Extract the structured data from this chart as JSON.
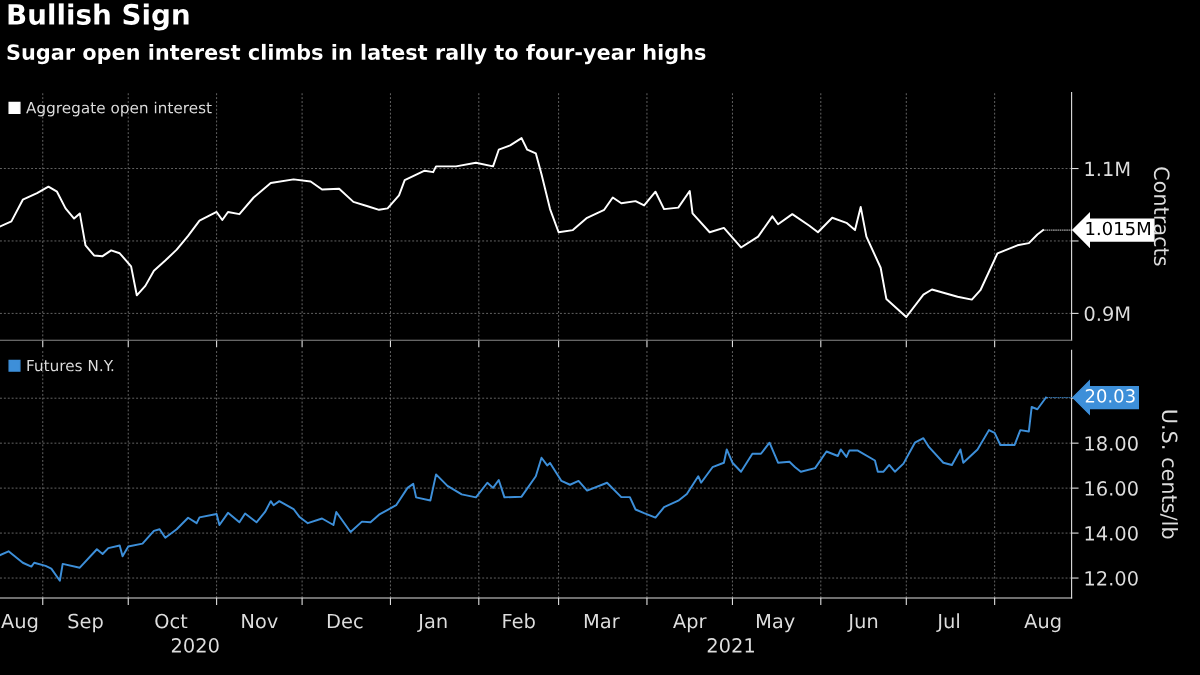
{
  "chart_data": [
    {
      "type": "line",
      "title": "Bullish Sign",
      "subtitle": "Sugar open interest climbs in latest rally to four-year highs",
      "ylabel": "Contracts",
      "grid": true,
      "legend": "top left",
      "tick_labels": "y",
      "xlim": [
        "2020-08-17",
        "2021-08-28"
      ],
      "ylim": [
        0.863,
        1.205
      ],
      "yticks": [
        {
          "value": 0.9,
          "label": "0.9M"
        },
        {
          "value": 1.0,
          "label": null
        },
        {
          "value": 1.1,
          "label": "1.1M"
        }
      ],
      "xticks": [
        {
          "value": "2020-09-01",
          "label": null
        },
        {
          "value": "2020-10-01",
          "label": null
        },
        {
          "value": "2020-11-01",
          "label": null
        },
        {
          "value": "2020-12-01",
          "label": null
        },
        {
          "value": "2021-01-01",
          "label": null
        },
        {
          "value": "2021-02-01",
          "label": null
        },
        {
          "value": "2021-03-01",
          "label": null
        },
        {
          "value": "2021-04-01",
          "label": null
        },
        {
          "value": "2021-05-01",
          "label": null
        },
        {
          "value": "2021-06-01",
          "label": null
        },
        {
          "value": "2021-07-01",
          "label": null
        },
        {
          "value": "2021-08-01",
          "label": null
        }
      ],
      "x": [
        "2020-08-17",
        "2020-08-21",
        "2020-08-25",
        "2020-08-30",
        "2020-09-03",
        "2020-09-06",
        "2020-09-09",
        "2020-09-12",
        "2020-09-14",
        "2020-09-16",
        "2020-09-19",
        "2020-09-22",
        "2020-09-25",
        "2020-09-28",
        "2020-10-02",
        "2020-10-04",
        "2020-10-07",
        "2020-10-10",
        "2020-10-14",
        "2020-10-18",
        "2020-10-22",
        "2020-10-26",
        "2020-11-01",
        "2020-11-03",
        "2020-11-05",
        "2020-11-09",
        "2020-11-14",
        "2020-11-20",
        "2020-11-28",
        "2020-12-04",
        "2020-12-08",
        "2020-12-14",
        "2020-12-19",
        "2020-12-24",
        "2020-12-28",
        "2020-12-31",
        "2021-01-04",
        "2021-01-06",
        "2021-01-13",
        "2021-01-16",
        "2021-01-17",
        "2021-01-24",
        "2021-01-31",
        "2021-02-06",
        "2021-02-08",
        "2021-02-12",
        "2021-02-16",
        "2021-02-18",
        "2021-02-21",
        "2021-02-23",
        "2021-02-26",
        "2021-03-01",
        "2021-03-06",
        "2021-03-11",
        "2021-03-17",
        "2021-03-20",
        "2021-03-23",
        "2021-03-28",
        "2021-03-31",
        "2021-04-04",
        "2021-04-07",
        "2021-04-12",
        "2021-04-16",
        "2021-04-17",
        "2021-04-23",
        "2021-04-28",
        "2021-05-04",
        "2021-05-10",
        "2021-05-15",
        "2021-05-17",
        "2021-05-22",
        "2021-05-28",
        "2021-05-31",
        "2021-06-05",
        "2021-06-10",
        "2021-06-13",
        "2021-06-15",
        "2021-06-17",
        "2021-06-22",
        "2021-06-24",
        "2021-07-01",
        "2021-07-07",
        "2021-07-10",
        "2021-07-19",
        "2021-07-24",
        "2021-07-27",
        "2021-08-02",
        "2021-08-09",
        "2021-08-13",
        "2021-08-16",
        "2021-08-18"
      ],
      "series": [
        {
          "name": "Aggregate open interest",
          "color": "#ffffff",
          "values": [
            1.02,
            1.027,
            1.057,
            1.066,
            1.075,
            1.068,
            1.045,
            1.031,
            1.038,
            0.994,
            0.98,
            0.979,
            0.987,
            0.983,
            0.965,
            0.925,
            0.938,
            0.959,
            0.973,
            0.988,
            1.007,
            1.028,
            1.04,
            1.029,
            1.04,
            1.037,
            1.06,
            1.08,
            1.085,
            1.082,
            1.071,
            1.072,
            1.054,
            1.048,
            1.043,
            1.045,
            1.063,
            1.084,
            1.097,
            1.095,
            1.103,
            1.103,
            1.108,
            1.103,
            1.126,
            1.132,
            1.142,
            1.126,
            1.121,
            1.092,
            1.044,
            1.012,
            1.015,
            1.032,
            1.043,
            1.06,
            1.052,
            1.055,
            1.049,
            1.068,
            1.044,
            1.046,
            1.069,
            1.038,
            1.012,
            1.018,
            0.991,
            1.006,
            1.034,
            1.023,
            1.037,
            1.021,
            1.012,
            1.032,
            1.025,
            1.015,
            1.047,
            1.006,
            0.963,
            0.92,
            0.895,
            0.926,
            0.933,
            0.923,
            0.919,
            0.932,
            0.983,
            0.994,
            0.997,
            1.009,
            1.015
          ]
        }
      ],
      "annotations": [
        {
          "text": "1.015M",
          "x": "2021-08-18",
          "y": 1.015
        }
      ]
    },
    {
      "type": "line",
      "ylabel": "U.S. cents/lb",
      "grid": true,
      "legend": "top left",
      "xlim": [
        "2020-08-17",
        "2021-08-28"
      ],
      "ylim": [
        11.11,
        22.13
      ],
      "yticks": [
        {
          "value": 12,
          "label": "12.00"
        },
        {
          "value": 14,
          "label": "14.00"
        },
        {
          "value": 16,
          "label": "16.00"
        },
        {
          "value": 18,
          "label": "18.00"
        },
        {
          "value": 20,
          "label": null
        }
      ],
      "xticks": [
        {
          "value": "2020-08-24",
          "label": "Aug"
        },
        {
          "value": "2020-09-01",
          "label": null
        },
        {
          "value": "2020-09-16",
          "label": "Sep"
        },
        {
          "value": "2020-10-01",
          "label": null
        },
        {
          "value": "2020-10-16",
          "label": "Oct"
        },
        {
          "value": "2020-11-01",
          "label": null
        },
        {
          "value": "2020-11-16",
          "label": "Nov"
        },
        {
          "value": "2020-12-01",
          "label": null
        },
        {
          "value": "2020-12-16",
          "label": "Dec"
        },
        {
          "value": "2021-01-01",
          "label": null
        },
        {
          "value": "2021-01-16",
          "label": "Jan"
        },
        {
          "value": "2021-02-01",
          "label": null
        },
        {
          "value": "2021-02-15",
          "label": "Feb"
        },
        {
          "value": "2021-03-01",
          "label": null
        },
        {
          "value": "2021-03-16",
          "label": "Mar"
        },
        {
          "value": "2021-04-01",
          "label": null
        },
        {
          "value": "2021-04-16",
          "label": "Apr"
        },
        {
          "value": "2021-05-01",
          "label": null
        },
        {
          "value": "2021-05-16",
          "label": "May"
        },
        {
          "value": "2021-06-01",
          "label": null
        },
        {
          "value": "2021-06-16",
          "label": "Jun"
        },
        {
          "value": "2021-07-01",
          "label": null
        },
        {
          "value": "2021-07-16",
          "label": "Jul"
        },
        {
          "value": "2021-08-01",
          "label": null
        },
        {
          "value": "2021-08-18",
          "label": "Aug"
        }
      ],
      "x": [
        "2020-08-17",
        "2020-08-20",
        "2020-08-25",
        "2020-08-28",
        "2020-08-29",
        "2020-09-02",
        "2020-09-04",
        "2020-09-07",
        "2020-09-08",
        "2020-09-14",
        "2020-09-20",
        "2020-09-22",
        "2020-09-24",
        "2020-09-28",
        "2020-09-29",
        "2020-10-01",
        "2020-10-06",
        "2020-10-10",
        "2020-10-12",
        "2020-10-14",
        "2020-10-18",
        "2020-10-22",
        "2020-10-25",
        "2020-10-26",
        "2020-11-01",
        "2020-11-02",
        "2020-11-05",
        "2020-11-09",
        "2020-11-11",
        "2020-11-15",
        "2020-11-18",
        "2020-11-20",
        "2020-11-21",
        "2020-11-23",
        "2020-11-28",
        "2020-11-30",
        "2020-12-03",
        "2020-12-08",
        "2020-12-12",
        "2020-12-13",
        "2020-12-18",
        "2020-12-22",
        "2020-12-25",
        "2020-12-28",
        "2021-01-03",
        "2021-01-07",
        "2021-01-09",
        "2021-01-10",
        "2021-01-15",
        "2021-01-17",
        "2021-01-21",
        "2021-01-26",
        "2021-01-31",
        "2021-02-04",
        "2021-02-06",
        "2021-02-08",
        "2021-02-10",
        "2021-02-16",
        "2021-02-21",
        "2021-02-23",
        "2021-02-25",
        "2021-02-26",
        "2021-03-02",
        "2021-03-05",
        "2021-03-08",
        "2021-03-11",
        "2021-03-18",
        "2021-03-23",
        "2021-03-26",
        "2021-03-28",
        "2021-03-31",
        "2021-04-04",
        "2021-04-07",
        "2021-04-12",
        "2021-04-15",
        "2021-04-19",
        "2021-04-20",
        "2021-04-24",
        "2021-04-28",
        "2021-04-29",
        "2021-05-01",
        "2021-05-04",
        "2021-05-08",
        "2021-05-11",
        "2021-05-14",
        "2021-05-17",
        "2021-05-21",
        "2021-05-23",
        "2021-05-25",
        "2021-05-30",
        "2021-06-03",
        "2021-06-07",
        "2021-06-08",
        "2021-06-10",
        "2021-06-11",
        "2021-06-14",
        "2021-06-20",
        "2021-06-21",
        "2021-06-23",
        "2021-06-25",
        "2021-06-27",
        "2021-06-30",
        "2021-07-04",
        "2021-07-07",
        "2021-07-09",
        "2021-07-14",
        "2021-07-17",
        "2021-07-20",
        "2021-07-21",
        "2021-07-26",
        "2021-07-30",
        "2021-08-01",
        "2021-08-03",
        "2021-08-08",
        "2021-08-10",
        "2021-08-13",
        "2021-08-14",
        "2021-08-16",
        "2021-08-19"
      ],
      "series": [
        {
          "name": "Futures N.Y.",
          "color": "#3d8fd9",
          "values": [
            13.02,
            13.19,
            12.68,
            12.51,
            12.68,
            12.54,
            12.42,
            11.88,
            12.63,
            12.46,
            13.28,
            13.07,
            13.33,
            13.45,
            12.97,
            13.4,
            13.53,
            14.1,
            14.17,
            13.79,
            14.17,
            14.68,
            14.44,
            14.7,
            14.85,
            14.36,
            14.9,
            14.48,
            14.87,
            14.48,
            14.94,
            15.42,
            15.24,
            15.42,
            15.07,
            14.73,
            14.44,
            14.65,
            14.36,
            14.94,
            14.05,
            14.51,
            14.48,
            14.82,
            15.24,
            16.01,
            16.19,
            15.59,
            15.45,
            16.61,
            16.1,
            15.72,
            15.59,
            16.24,
            16.01,
            16.36,
            15.59,
            15.62,
            16.53,
            17.35,
            17.01,
            17.12,
            16.32,
            16.15,
            16.32,
            15.89,
            16.24,
            15.6,
            15.6,
            15.05,
            14.89,
            14.69,
            15.15,
            15.44,
            15.74,
            16.53,
            16.24,
            16.93,
            17.13,
            17.72,
            17.13,
            16.73,
            17.53,
            17.53,
            18.02,
            17.13,
            17.17,
            16.93,
            16.73,
            16.89,
            17.63,
            17.43,
            17.72,
            17.39,
            17.67,
            17.67,
            17.23,
            16.73,
            16.73,
            17.03,
            16.73,
            17.09,
            18.02,
            18.22,
            17.82,
            17.13,
            17.03,
            17.72,
            17.13,
            17.72,
            18.58,
            18.46,
            17.92,
            17.92,
            18.58,
            18.52,
            19.61,
            19.51,
            20.03
          ]
        }
      ],
      "annotations": [
        {
          "text": "20.03",
          "x": "2021-08-19",
          "y": 20.03
        },
        "2020",
        "2021"
      ]
    }
  ]
}
